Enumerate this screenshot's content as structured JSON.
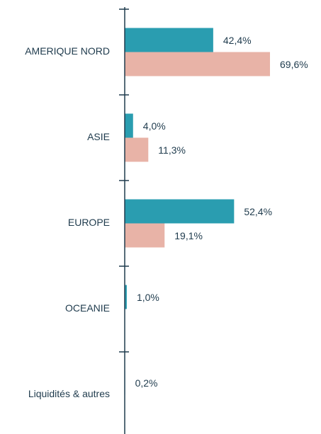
{
  "chart_data": {
    "type": "hbar",
    "categories": [
      "AMERIQUE NORD",
      "ASIE",
      "EUROPE",
      "OCEANIE",
      "Liquidités & autres"
    ],
    "series": [
      {
        "color": "#2a9db0",
        "values": [
          42.4,
          4.0,
          52.4,
          1.0,
          0.2
        ],
        "value_labels": [
          "42,4%",
          "4,0%",
          "52,4%",
          "1,0%",
          "0,2%"
        ]
      },
      {
        "color": "#e8b3a7",
        "values": [
          69.6,
          11.3,
          19.1,
          null,
          null
        ],
        "value_labels": [
          "69,6%",
          "11,3%",
          "19,1%",
          null,
          null
        ]
      }
    ]
  }
}
